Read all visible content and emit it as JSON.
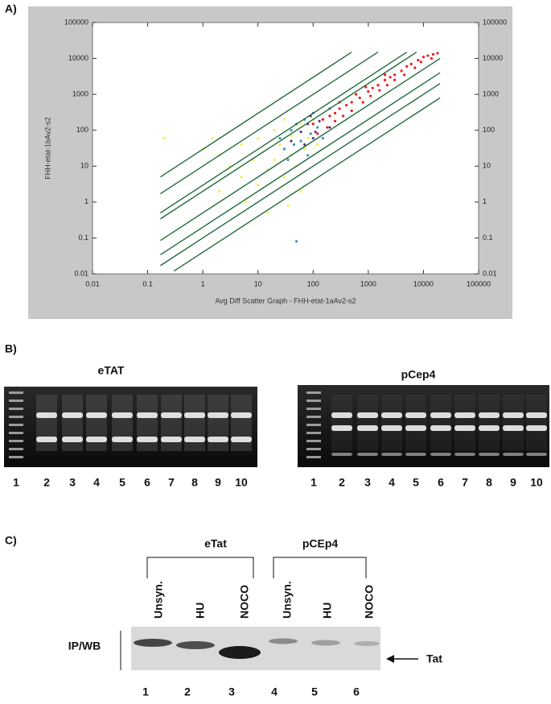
{
  "panel_a": {
    "label": "A)"
  },
  "chart_data": {
    "type": "scatter",
    "xlabel": "Avg Diff Scatter Graph - FHH-etat-1aAv2-s2",
    "ylabel": "FHH-etat-1bAv2-s2",
    "xlim": [
      0.01,
      100000
    ],
    "ylim": [
      0.01,
      100000
    ],
    "xticks": [
      0.01,
      0.1,
      1,
      10,
      100,
      1000,
      10000,
      100000
    ],
    "yticks": [
      0.01,
      0.1,
      1,
      10,
      100,
      1000,
      10000,
      100000
    ],
    "log_x": true,
    "log_y": true,
    "series": [
      {
        "color": "#f2f24a",
        "x": [
          2,
          3,
          5,
          5,
          8,
          10,
          10,
          12,
          15,
          20,
          20,
          25,
          30,
          30,
          40,
          40,
          50,
          60,
          70,
          80,
          1,
          1.5,
          0.2,
          2,
          6,
          15,
          35,
          60,
          100,
          120
        ],
        "values": [
          20,
          10,
          40,
          5,
          15,
          60,
          3,
          25,
          8,
          100,
          15,
          40,
          5,
          200,
          20,
          70,
          10,
          150,
          30,
          60,
          30,
          60,
          60,
          2,
          1,
          0.5,
          0.8,
          2,
          200,
          40
        ]
      },
      {
        "color": "#3a8fc8",
        "x": [
          30,
          40,
          50,
          60,
          70,
          80,
          90,
          100,
          150,
          200,
          50,
          35,
          45,
          120,
          25
        ],
        "values": [
          30,
          100,
          0.08,
          50,
          200,
          20,
          80,
          300,
          60,
          400,
          150,
          15,
          40,
          120,
          60
        ]
      },
      {
        "color": "#5a3a7a",
        "x": [
          40,
          60,
          80,
          100,
          150,
          200,
          70,
          90,
          110,
          130
        ],
        "values": [
          50,
          90,
          150,
          60,
          200,
          120,
          40,
          250,
          90,
          180
        ]
      },
      {
        "color": "#ee1c1c",
        "x": [
          100,
          150,
          200,
          250,
          300,
          400,
          500,
          700,
          1000,
          1200,
          1500,
          2000,
          2500,
          3000,
          4000,
          5000,
          6000,
          8000,
          10000,
          12000,
          15000,
          18000,
          120,
          180,
          250,
          350,
          500,
          800,
          1100,
          1600,
          2200,
          3000,
          4500,
          7000,
          9000,
          14000,
          300,
          600,
          900,
          2000
        ],
        "values": [
          150,
          200,
          250,
          300,
          400,
          500,
          600,
          800,
          1200,
          1500,
          1800,
          2500,
          3000,
          3500,
          4500,
          6000,
          7000,
          9000,
          11000,
          12000,
          13000,
          14000,
          80,
          120,
          180,
          250,
          350,
          600,
          900,
          1300,
          1800,
          2500,
          3500,
          5500,
          8000,
          10000,
          600,
          1000,
          1600,
          3500
        ]
      }
    ],
    "reference_lines": [
      {
        "color": "#1f6b3a",
        "x": [
          0.17,
          500
        ],
        "values": [
          5,
          15000
        ]
      },
      {
        "color": "#1f6b3a",
        "x": [
          0.17,
          1500
        ],
        "values": [
          1.7,
          15000
        ]
      },
      {
        "color": "#1f6b3a",
        "x": [
          0.17,
          5000
        ],
        "values": [
          0.5,
          15000
        ]
      },
      {
        "color": "#1f6b3a",
        "x": [
          0.17,
          7500
        ],
        "values": [
          0.34,
          15000
        ]
      },
      {
        "color": "#1f6b3a",
        "x": [
          0.17,
          20000
        ],
        "values": [
          0.085,
          10000
        ]
      },
      {
        "color": "#1f6b3a",
        "x": [
          0.17,
          20000
        ],
        "values": [
          0.034,
          4000
        ]
      },
      {
        "color": "#1f6b3a",
        "x": [
          0.17,
          20000
        ],
        "values": [
          0.017,
          2000
        ]
      },
      {
        "color": "#1f6b3a",
        "x": [
          0.3,
          20000
        ],
        "values": [
          0.012,
          800
        ]
      }
    ]
  },
  "panel_b": {
    "label": "B)",
    "gels": [
      {
        "title": "eTAT",
        "lanes": [
          1,
          2,
          3,
          4,
          5,
          6,
          7,
          8,
          9,
          10
        ]
      },
      {
        "title": "pCep4",
        "lanes": [
          1,
          2,
          3,
          4,
          5,
          6,
          7,
          8,
          9,
          10
        ]
      }
    ]
  },
  "panel_c": {
    "label": "C)",
    "groups": [
      {
        "title": "eTat",
        "lanes": [
          "Unsyn.",
          "HU",
          "NOCO"
        ]
      },
      {
        "title": "pCEp4",
        "lanes": [
          "Unsyn.",
          "HU",
          "NOCO"
        ]
      }
    ],
    "row_label": "IP/WB",
    "band_label": "Tat",
    "lane_numbers": [
      1,
      2,
      3,
      4,
      5,
      6
    ]
  }
}
